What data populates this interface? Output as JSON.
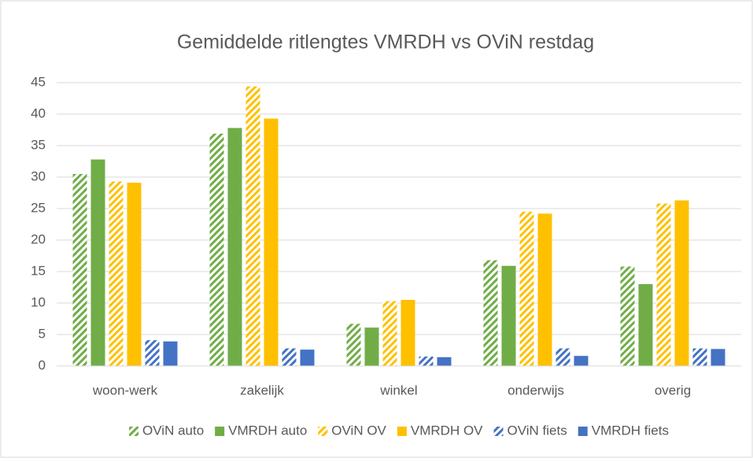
{
  "chart_data": {
    "type": "bar",
    "title": "Gemiddelde ritlengtes VMRDH vs OViN restdag",
    "categories": [
      "woon-werk",
      "zakelijk",
      "winkel",
      "onderwijs",
      "overig"
    ],
    "series": [
      {
        "name": "OViN auto",
        "color": "#70ad47",
        "pattern": "hatched",
        "values": [
          30.5,
          36.9,
          6.7,
          16.8,
          15.8
        ]
      },
      {
        "name": "VMRDH auto",
        "color": "#70ad47",
        "pattern": "solid",
        "values": [
          32.8,
          37.8,
          6.1,
          15.9,
          13.0
        ]
      },
      {
        "name": "OViN OV",
        "color": "#ffc000",
        "pattern": "hatched",
        "values": [
          29.3,
          44.4,
          10.3,
          24.5,
          25.8
        ]
      },
      {
        "name": "VMRDH OV",
        "color": "#ffc000",
        "pattern": "solid",
        "values": [
          29.1,
          39.3,
          10.5,
          24.2,
          26.3
        ]
      },
      {
        "name": "OViN fiets",
        "color": "#4472c4",
        "pattern": "hatched",
        "values": [
          4.1,
          2.8,
          1.5,
          2.8,
          2.8
        ]
      },
      {
        "name": "VMRDH fiets",
        "color": "#4472c4",
        "pattern": "solid",
        "values": [
          3.9,
          2.6,
          1.4,
          1.6,
          2.7
        ]
      }
    ],
    "ylim": [
      0,
      45
    ],
    "yticks": [
      0,
      5,
      10,
      15,
      20,
      25,
      30,
      35,
      40,
      45
    ],
    "grid": true,
    "legend": "bottom"
  }
}
